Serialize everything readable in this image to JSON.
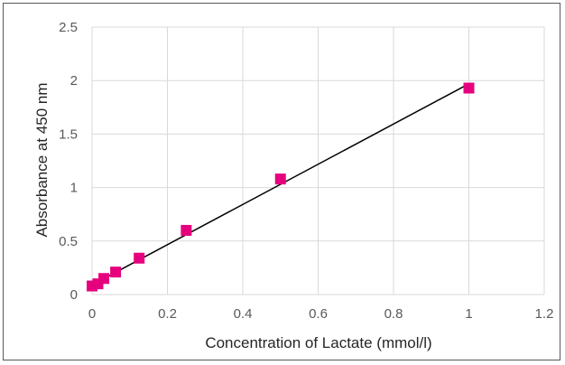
{
  "chart_data": {
    "type": "scatter",
    "xlabel": "Concentration of Lactate (mmol/l)",
    "ylabel": "Absorbance at 450 nm",
    "xlim": [
      0,
      1.2
    ],
    "ylim": [
      0,
      2.5
    ],
    "xticks": [
      "0",
      "0.2",
      "0.4",
      "0.6",
      "0.8",
      "1",
      "1.2"
    ],
    "yticks": [
      "0",
      "0.5",
      "1",
      "1.5",
      "2",
      "2.5"
    ],
    "grid": true,
    "legend": "none",
    "series": [
      {
        "marker": "square",
        "color": "#E6007E",
        "x": [
          0,
          0.0156,
          0.03125,
          0.0625,
          0.125,
          0.25,
          0.5,
          1
        ],
        "y": [
          0.08,
          0.1,
          0.15,
          0.21,
          0.34,
          0.6,
          1.08,
          1.93
        ]
      }
    ],
    "trendline": {
      "type": "linear",
      "color": "#000000",
      "x": [
        0,
        1
      ],
      "y": [
        0.09,
        1.97
      ]
    }
  }
}
